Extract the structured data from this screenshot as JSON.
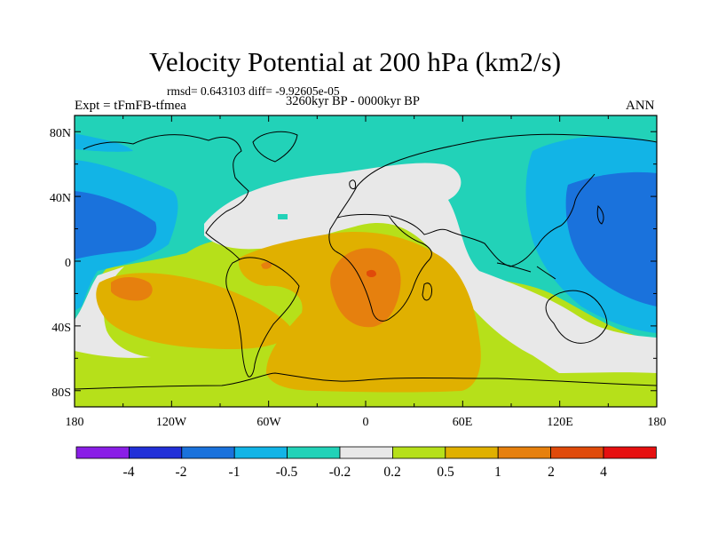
{
  "title": "Velocity Potential at 200 hPa (km2/s)",
  "stats": "rmsd= 0.643103 diff= -9.92605e-05",
  "period": "3260kyr BP - 0000kyr BP",
  "experiment": "Expt = tFmFB-tfmea",
  "season": "ANN",
  "lat_labels": [
    "80N",
    "40N",
    "0",
    "40S",
    "80S"
  ],
  "lon_labels": [
    "180",
    "120W",
    "60W",
    "0",
    "60E",
    "120E",
    "180"
  ],
  "colorbar": {
    "labels": [
      "-4",
      "-2",
      "-1",
      "-0.5",
      "-0.2",
      "0.2",
      "0.5",
      "1",
      "2",
      "4"
    ],
    "colors": [
      "#8a1ee6",
      "#2230d8",
      "#1a72dc",
      "#12b4e6",
      "#22d2b8",
      "#e8e8e8",
      "#b6e01a",
      "#e0b000",
      "#e6800e",
      "#e04a0a",
      "#e61010"
    ]
  },
  "field_colors": {
    "neg_weak": "#22d2b8",
    "neg_mid": "#12b4e6",
    "neg_strong": "#1a72dc",
    "neutral": "#e8e8e8",
    "pos_weak": "#b6e01a",
    "pos_mid": "#e0b000",
    "pos_strong": "#e6800e",
    "pos_max": "#e04a0a"
  }
}
